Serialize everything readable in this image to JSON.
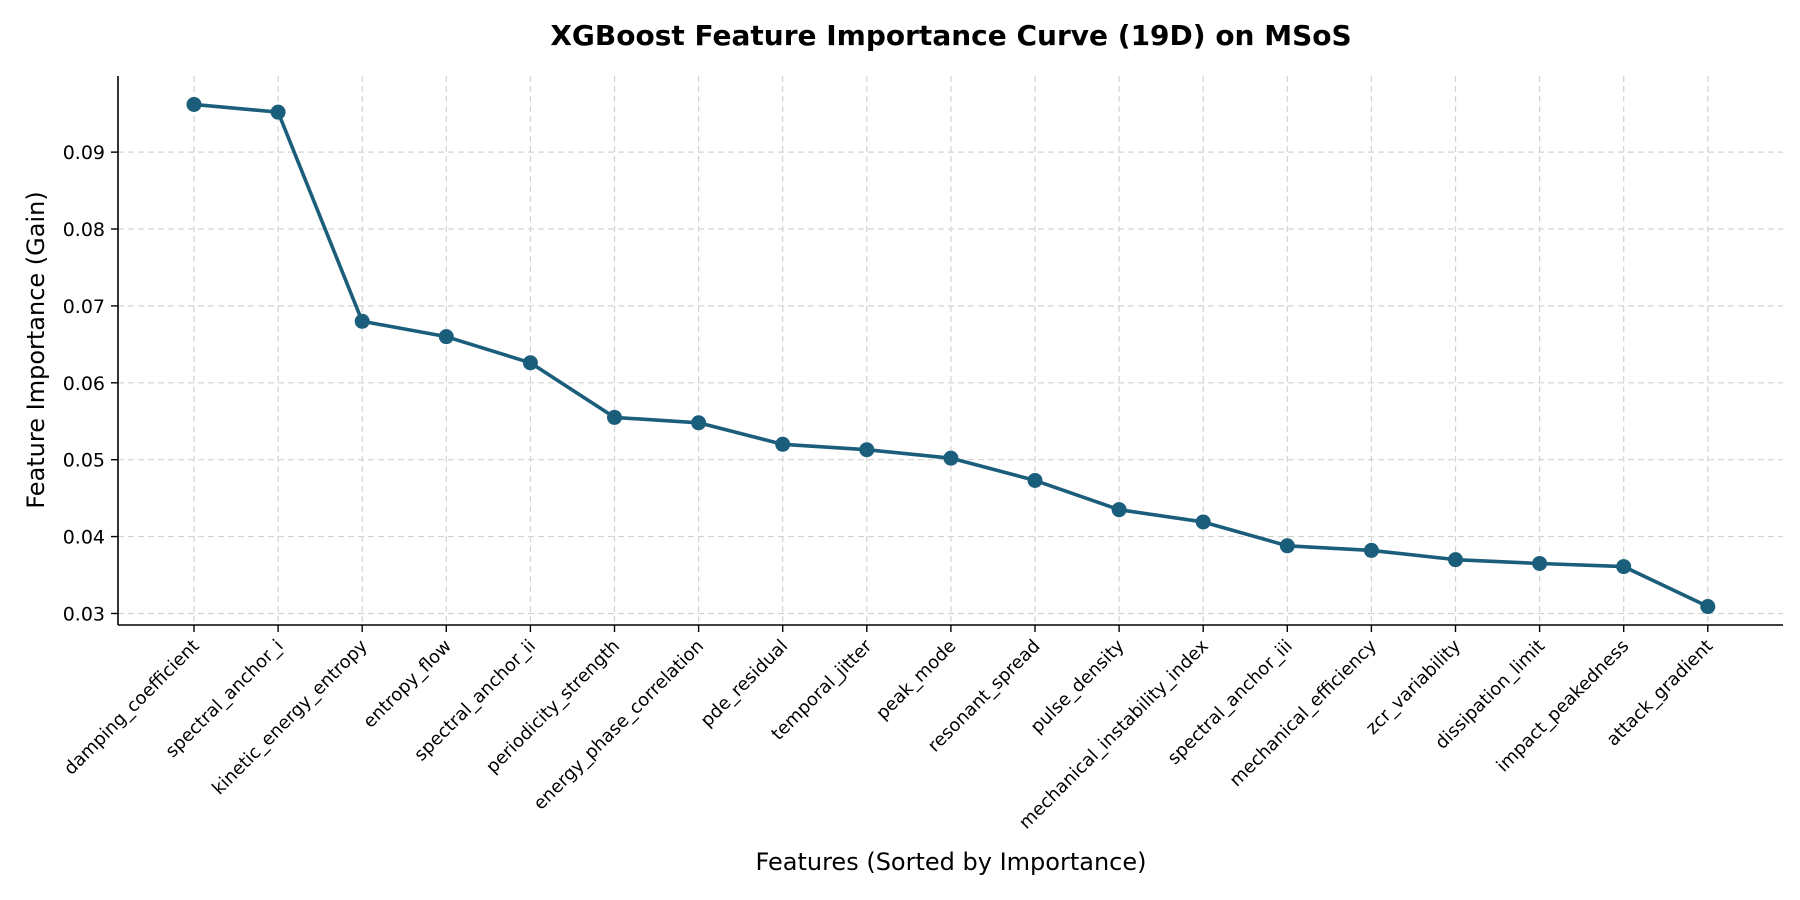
{
  "chart_data": {
    "type": "line",
    "title": "XGBoost Feature Importance Curve (19D) on MSoS",
    "xlabel": "Features (Sorted by Importance)",
    "ylabel": "Feature Importance (Gain)",
    "categories": [
      "damping_coefficient",
      "spectral_anchor_i",
      "kinetic_energy_entropy",
      "entropy_flow",
      "spectral_anchor_ii",
      "periodicity_strength",
      "energy_phase_correlation",
      "pde_residual",
      "temporal_jitter",
      "peak_mode",
      "resonant_spread",
      "pulse_density",
      "mechanical_instability_index",
      "spectral_anchor_iii",
      "mechanical_efficiency",
      "zcr_variability",
      "dissipation_limit",
      "impact_peakedness",
      "attack_gradient"
    ],
    "values": [
      0.0962,
      0.0952,
      0.068,
      0.066,
      0.0626,
      0.0555,
      0.0548,
      0.052,
      0.0513,
      0.0502,
      0.0473,
      0.0435,
      0.0419,
      0.0388,
      0.0382,
      0.037,
      0.0365,
      0.0361,
      0.0309
    ],
    "yticks": [
      "0.03",
      "0.04",
      "0.05",
      "0.06",
      "0.07",
      "0.08",
      "0.09"
    ],
    "ylim": [
      0.0285,
      0.0999
    ],
    "grid": true,
    "line_color": "#1b5e7b",
    "marker": "circle"
  }
}
